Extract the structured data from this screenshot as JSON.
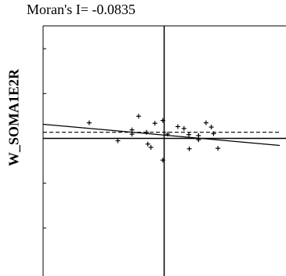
{
  "chart_data": {
    "type": "scatter",
    "title": "Moran's I= -0.0835",
    "xlabel": "",
    "ylabel": "W_SOMA1E2R",
    "xlim": [
      -2.4,
      2.4
    ],
    "ylim": [
      -2.4,
      2.4
    ],
    "moran_I": -0.0835,
    "grid": false,
    "points": [
      [
        -1.7,
        0.33
      ],
      [
        -1.05,
        -0.05
      ],
      [
        -0.73,
        0.18
      ],
      [
        -0.73,
        0.09
      ],
      [
        -0.58,
        0.47
      ],
      [
        -0.4,
        0.13
      ],
      [
        -0.37,
        -0.12
      ],
      [
        -0.3,
        -0.19
      ],
      [
        -0.21,
        0.32
      ],
      [
        -0.03,
        0.38
      ],
      [
        -0.03,
        -0.46
      ],
      [
        0.08,
        0.09
      ],
      [
        0.31,
        0.25
      ],
      [
        0.45,
        0.21
      ],
      [
        0.56,
        0.08
      ],
      [
        0.57,
        -0.22
      ],
      [
        0.78,
        -0.03
      ],
      [
        0.78,
        0.06
      ],
      [
        0.95,
        0.33
      ],
      [
        1.07,
        0.24
      ],
      [
        1.12,
        0.1
      ],
      [
        1.22,
        -0.21
      ]
    ],
    "regression": {
      "intercept": 0.07,
      "slope": -0.0835,
      "style": "solid"
    },
    "reference_line": {
      "y": 0.13,
      "style": "dashed"
    },
    "axes_at_zero": true
  }
}
